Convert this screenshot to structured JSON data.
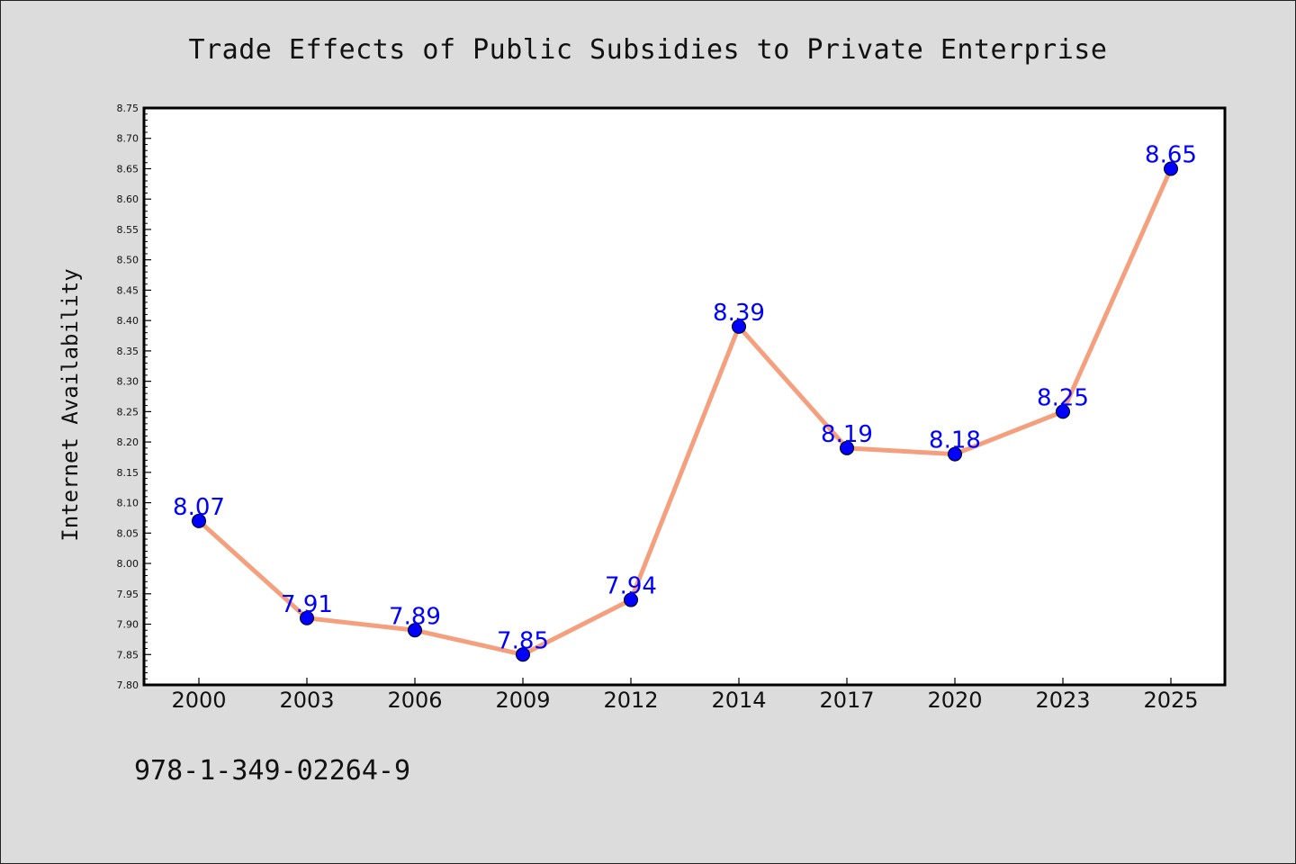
{
  "chart_data": {
    "type": "line",
    "title": "Trade Effects of Public Subsidies to Private Enterprise",
    "xlabel": "",
    "ylabel": "Internet Availability",
    "categories": [
      "2000",
      "2003",
      "2006",
      "2009",
      "2012",
      "2014",
      "2017",
      "2020",
      "2023",
      "2025"
    ],
    "series": [
      {
        "values": [
          8.07,
          7.91,
          7.89,
          7.85,
          7.94,
          8.39,
          8.19,
          8.18,
          8.25,
          8.65
        ],
        "data_labels": [
          "8.07",
          "7.91",
          "7.89",
          "7.85",
          "7.94",
          "8.39",
          "8.19",
          "8.18",
          "8.25",
          "8.65"
        ],
        "line_color": "#f4a07f",
        "marker_color": "#0000ff"
      }
    ],
    "ylim": [
      7.8,
      8.75
    ],
    "yticks": [
      "7.80",
      "7.85",
      "7.90",
      "7.95",
      "8.00",
      "8.05",
      "8.10",
      "8.15",
      "8.20",
      "8.25",
      "8.30",
      "8.35",
      "8.40",
      "8.45",
      "8.50",
      "8.55",
      "8.60",
      "8.65",
      "8.70",
      "8.75"
    ],
    "grid": false,
    "legend": "none",
    "label_color": "#0000ff",
    "background_color": "#dcdcdc",
    "plot_background_color": "#ffffff"
  },
  "isbn": "978-1-349-02264-9"
}
